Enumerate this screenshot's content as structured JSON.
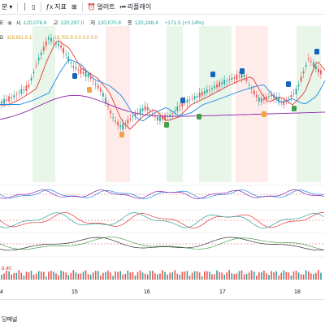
{
  "toolbar": {
    "items": [
      {
        "label": "분",
        "icon": "chevron-down-icon"
      },
      {
        "label": "",
        "icon": "bar-style-icon"
      },
      {
        "label": "",
        "icon": "candle-icon"
      },
      {
        "label": "지표",
        "icon": "indicator-icon"
      },
      {
        "label": "",
        "icon": "grid-icon"
      },
      {
        "label": "얼러트",
        "icon": "alarm-icon"
      },
      {
        "label": "리플레이",
        "icon": "replay-icon"
      }
    ]
  },
  "ohlc": {
    "prefix": "E",
    "open_label": "시",
    "open": "120,076.8",
    "high_label": "고",
    "high": "120,297.0",
    "low_label": "저",
    "low": "120,070.8",
    "close_label": "종",
    "close": "120,248.4",
    "change": "+171.5 (+0.14%)"
  },
  "indicator_line": "119,611.5  119,223.0  118,702.5  0.0  0.0  0.0",
  "indicator_prefix": "D",
  "sub_label": "8.40",
  "x_axis": [
    "4",
    "15",
    "16",
    "17",
    "18"
  ],
  "bottom": {
    "tab": "딩패널"
  },
  "colors": {
    "up": "#26a69a",
    "down": "#ef5350",
    "ma_fast": "#e53935",
    "ma_mid": "#1e88e5",
    "ma_slow": "#8e24aa"
  }
}
